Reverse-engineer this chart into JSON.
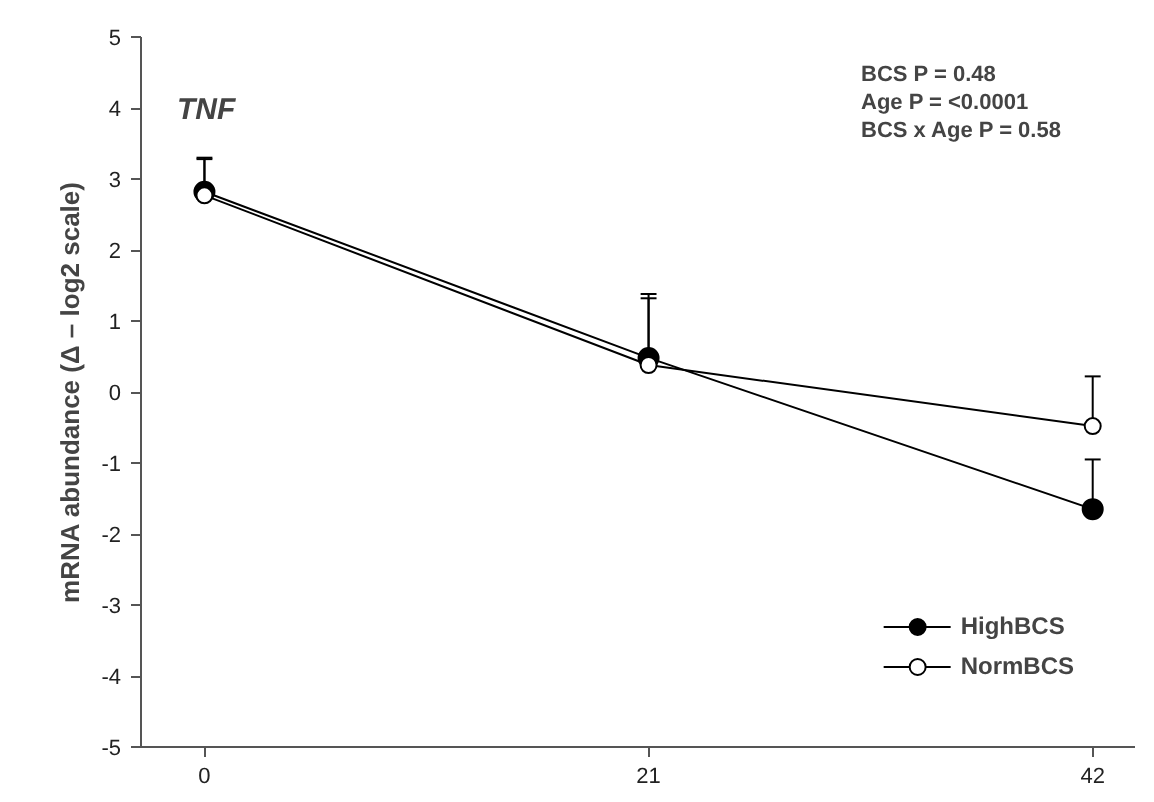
{
  "chart_data": {
    "type": "line",
    "title": "TNF",
    "ylabel": "mRNA abundance (Δ – log2 scale)",
    "annotations": [
      "BCS P = 0.48",
      "Age P = <0.0001",
      "BCS x Age P = 0.58"
    ],
    "x": [
      0,
      21,
      42
    ],
    "series": [
      {
        "name": "HighBCS",
        "color": "#000000",
        "values": [
          2.82,
          0.48,
          -1.65
        ],
        "errors": [
          [
            2.82,
            3.3
          ],
          [
            0.48,
            1.38
          ],
          [
            -1.65,
            -0.95
          ]
        ]
      },
      {
        "name": "NormBCS",
        "color": "#ffffff",
        "values": [
          2.77,
          0.38,
          -0.48
        ],
        "errors": [
          [
            2.77,
            3.28
          ],
          [
            0.38,
            1.32
          ],
          [
            -0.48,
            0.22
          ]
        ]
      }
    ],
    "xlim": [
      -3,
      44
    ],
    "xticks": [
      0,
      21,
      42
    ],
    "ylim": [
      -5,
      5
    ],
    "yticks": [
      -5,
      -4,
      -3,
      -2,
      -1,
      0,
      1,
      2,
      3,
      4,
      5
    ],
    "grid": false,
    "legend": "bottom right",
    "marker": "circle",
    "line_style": "solid"
  }
}
